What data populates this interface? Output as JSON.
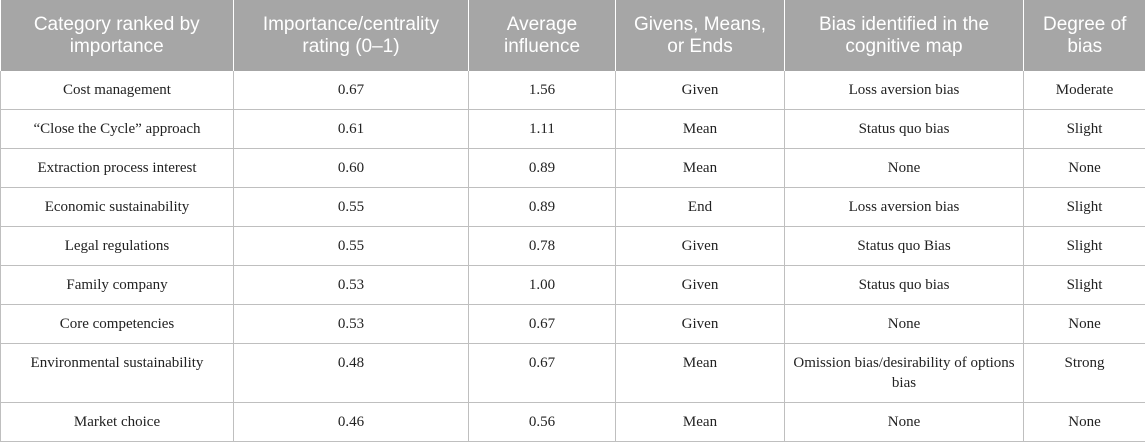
{
  "table": {
    "headers": [
      "Category ranked by importance",
      "Importance/centrality rating (0–1)",
      "Average influence",
      "Givens, Means, or Ends",
      "Bias identified in the cognitive map",
      "Degree of bias"
    ],
    "rows": [
      [
        "Cost management",
        "0.67",
        "1.56",
        "Given",
        "Loss aversion bias",
        "Moderate"
      ],
      [
        "“Close the Cycle” approach",
        "0.61",
        "1.11",
        "Mean",
        "Status quo bias",
        "Slight"
      ],
      [
        "Extraction process interest",
        "0.60",
        "0.89",
        "Mean",
        "None",
        "None"
      ],
      [
        "Economic sustainability",
        "0.55",
        "0.89",
        "End",
        "Loss aversion bias",
        "Slight"
      ],
      [
        "Legal regulations",
        "0.55",
        "0.78",
        "Given",
        "Status quo Bias",
        "Slight"
      ],
      [
        "Family company",
        "0.53",
        "1.00",
        "Given",
        "Status quo bias",
        "Slight"
      ],
      [
        "Core competencies",
        "0.53",
        "0.67",
        "Given",
        "None",
        "None"
      ],
      [
        "Environmental sustainability",
        "0.48",
        "0.67",
        "Mean",
        "Omission bias/desirability of options bias",
        "Strong"
      ],
      [
        "Market choice",
        "0.46",
        "0.56",
        "Mean",
        "None",
        "None"
      ]
    ]
  }
}
